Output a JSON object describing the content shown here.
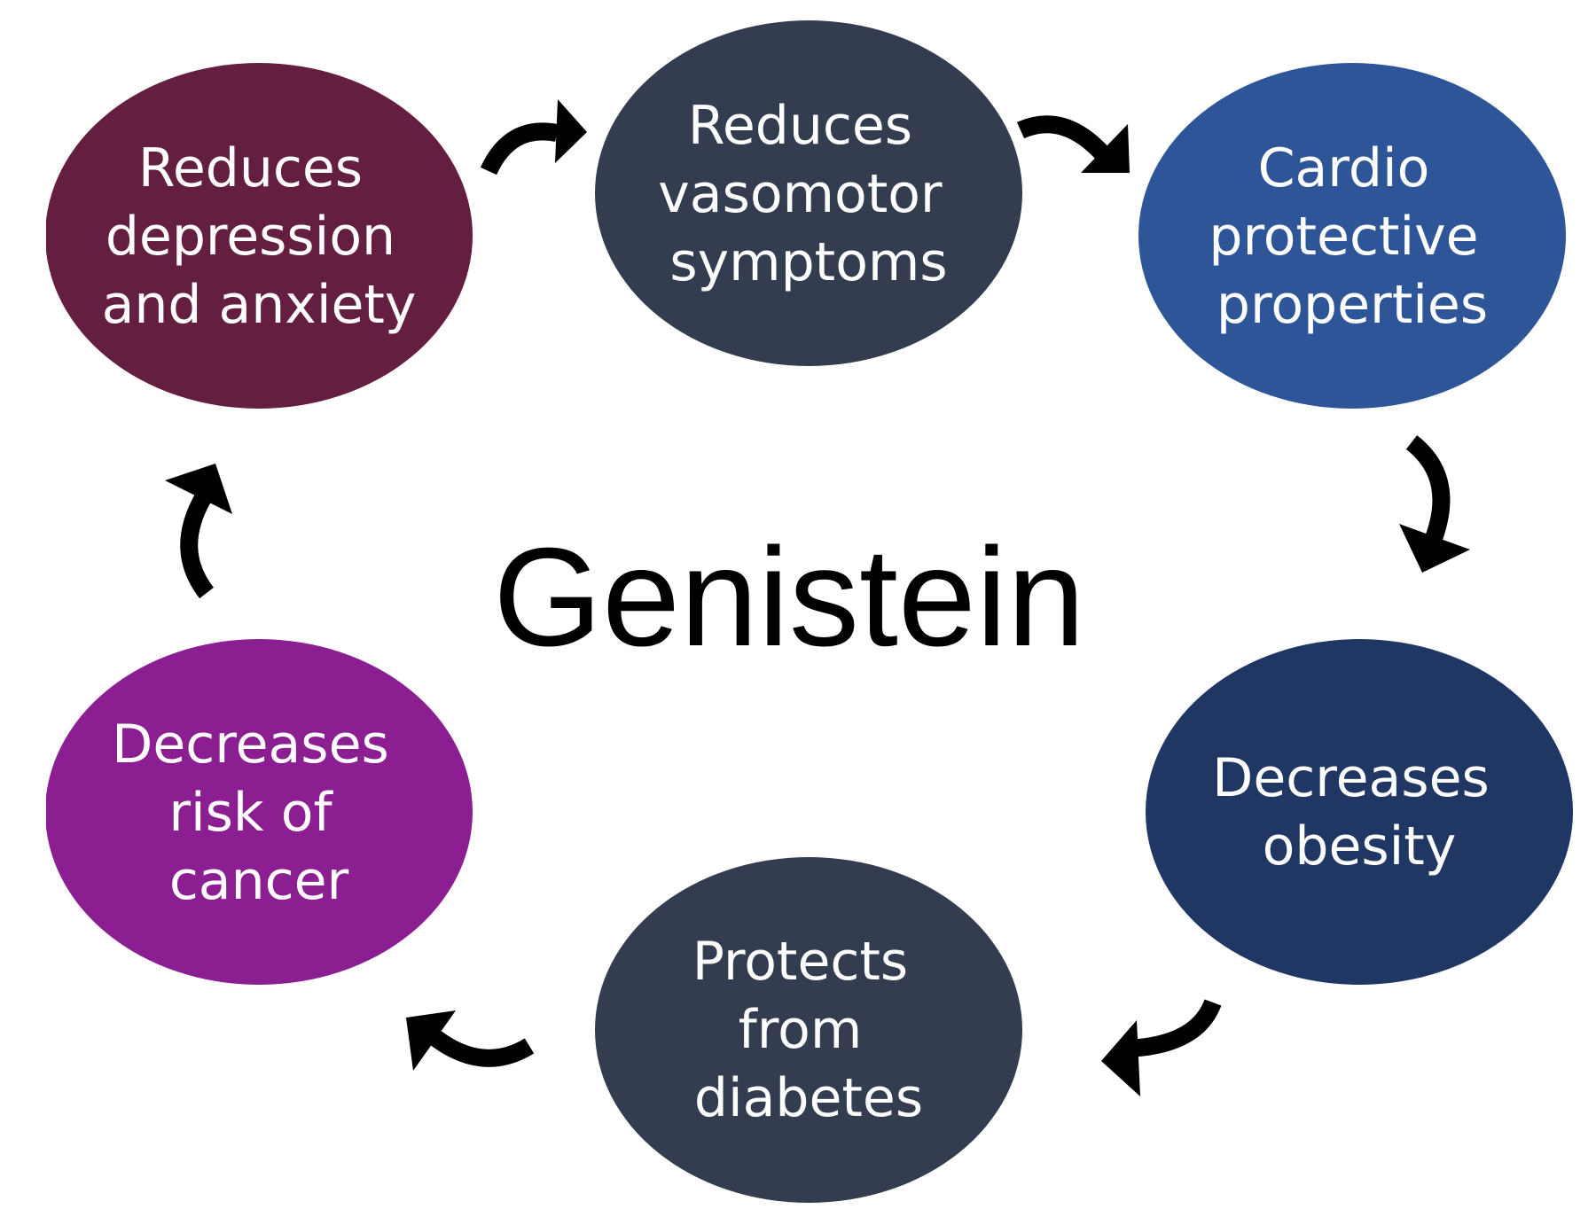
{
  "center": {
    "title": "Genistein"
  },
  "nodes": [
    {
      "lines": [
        "Reduces",
        "depression",
        "and anxiety"
      ],
      "color": "#641F40"
    },
    {
      "lines": [
        "Reduces",
        "vasomotor",
        "symptoms"
      ],
      "color": "#333D4F"
    },
    {
      "lines": [
        "Cardio",
        "protective",
        "properties"
      ],
      "color": "#2E5597"
    },
    {
      "lines": [
        "Decreases",
        "obesity"
      ],
      "color": "#213763"
    },
    {
      "lines": [
        "Protects",
        "from",
        "diabetes"
      ],
      "color": "#333D4F"
    },
    {
      "lines": [
        "Decreases",
        "risk of",
        "cancer"
      ],
      "color": "#8B1F92"
    }
  ],
  "arrow_color": "#000000"
}
